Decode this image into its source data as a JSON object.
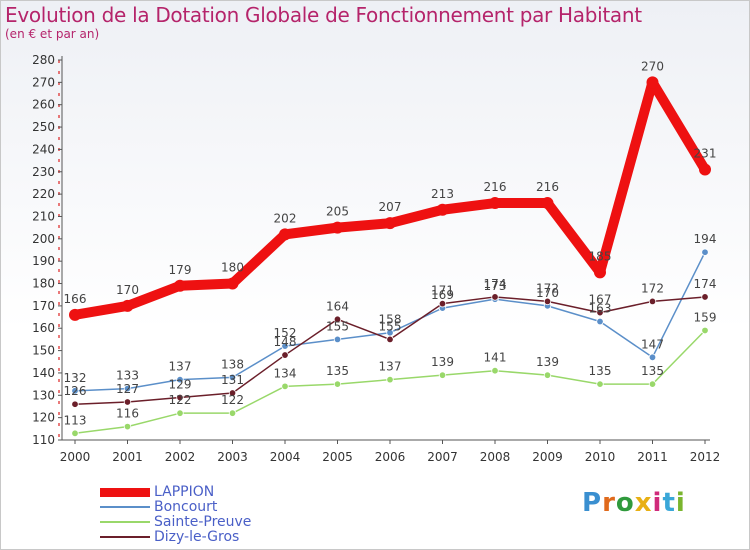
{
  "title": "Evolution de la Dotation Globale de Fonctionnement par Habitant",
  "subtitle": "(en € et par an)",
  "logo": "Proxiti",
  "chart_data": {
    "type": "line",
    "title": "Evolution de la Dotation Globale de Fonctionnement par Habitant",
    "subtitle": "(en € et par an)",
    "xlabel": "",
    "ylabel": "",
    "x": [
      "2000",
      "2001",
      "2002",
      "2003",
      "2004",
      "2005",
      "2006",
      "2007",
      "2008",
      "2009",
      "2010",
      "2011",
      "2012"
    ],
    "ylim": [
      110,
      280
    ],
    "yticks": [
      110,
      120,
      130,
      140,
      150,
      160,
      170,
      180,
      190,
      200,
      210,
      220,
      230,
      240,
      250,
      260,
      270,
      280
    ],
    "grid": false,
    "legend_position": "bottom-left",
    "series": [
      {
        "name": "LAPPION",
        "color": "#ee1111",
        "values": [
          166,
          170,
          179,
          180,
          202,
          205,
          207,
          213,
          216,
          216,
          185,
          270,
          231
        ]
      },
      {
        "name": "Boncourt",
        "color": "#5b8fc9",
        "values": [
          132,
          133,
          137,
          138,
          152,
          155,
          158,
          169,
          173,
          170,
          163,
          147,
          194
        ]
      },
      {
        "name": "Sainte-Preuve",
        "color": "#99d86a",
        "values": [
          113,
          116,
          122,
          122,
          134,
          135,
          137,
          139,
          141,
          139,
          135,
          135,
          159
        ]
      },
      {
        "name": "Dizy-le-Gros",
        "color": "#6b1f2a",
        "values": [
          126,
          127,
          129,
          131,
          148,
          164,
          155,
          171,
          174,
          172,
          167,
          172,
          174
        ]
      }
    ]
  }
}
